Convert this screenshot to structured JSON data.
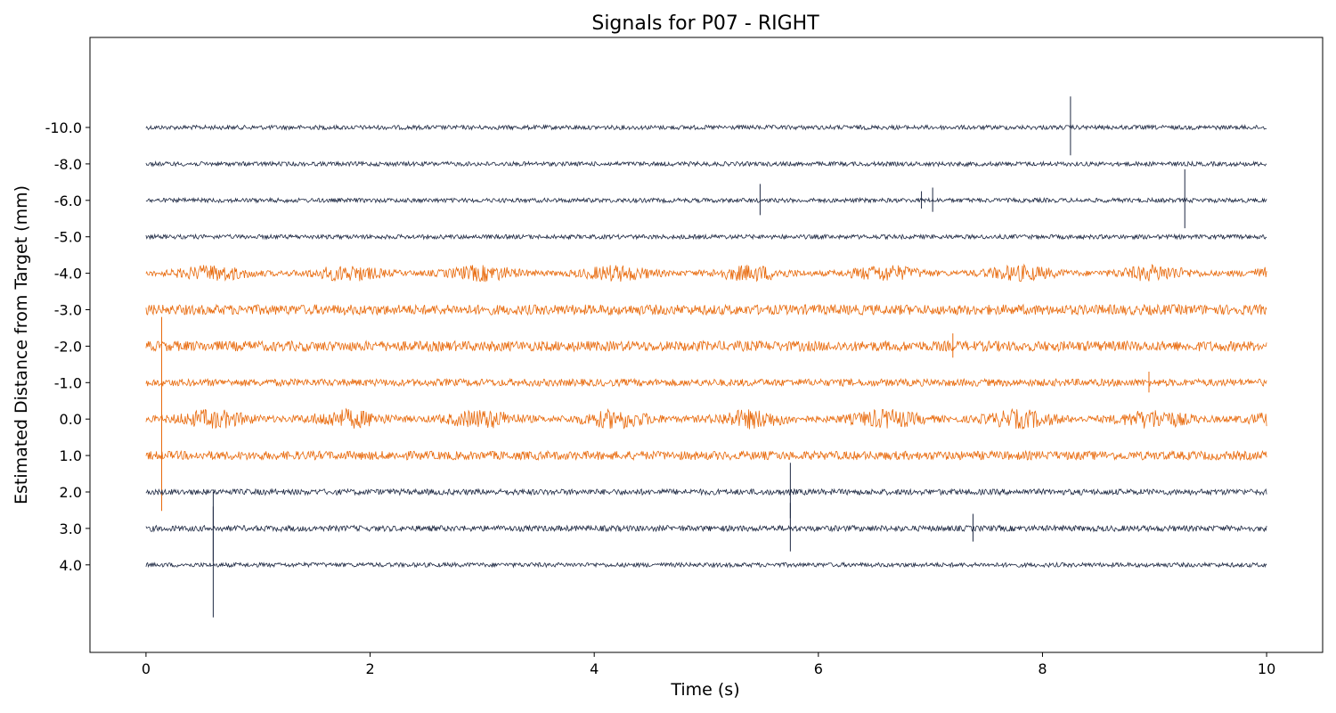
{
  "chart_data": {
    "type": "line",
    "title": "Signals for P07 - RIGHT",
    "xlabel": "Time (s)",
    "ylabel": "Estimated Distance from Target (mm)",
    "xlim": [
      -0.5,
      10.5
    ],
    "xticks": [
      "0",
      "2",
      "4",
      "6",
      "8",
      "10"
    ],
    "x_range": [
      0,
      10
    ],
    "grid": false,
    "colors": {
      "normal": "#1f2a44",
      "highlight": "#e8690b"
    },
    "series": [
      {
        "name": "-10.0",
        "depth": -10.0,
        "highlighted": false,
        "amplitude": 0.06,
        "spikes": [
          {
            "t": 8.25,
            "amp": 0.85
          }
        ]
      },
      {
        "name": "-8.0",
        "depth": -8.0,
        "highlighted": false,
        "amplitude": 0.06,
        "spikes": []
      },
      {
        "name": "-6.0",
        "depth": -6.0,
        "highlighted": false,
        "amplitude": 0.06,
        "spikes": [
          {
            "t": 5.48,
            "amp": 0.45
          },
          {
            "t": 6.92,
            "amp": 0.25
          },
          {
            "t": 7.02,
            "amp": 0.35
          },
          {
            "t": 9.27,
            "amp": 0.85
          }
        ]
      },
      {
        "name": "-5.0",
        "depth": -5.0,
        "highlighted": false,
        "amplitude": 0.06,
        "spikes": []
      },
      {
        "name": "-4.0",
        "depth": -4.0,
        "highlighted": true,
        "amplitude": 0.12,
        "bursts": true,
        "spikes": []
      },
      {
        "name": "-3.0",
        "depth": -3.0,
        "highlighted": true,
        "amplitude": 0.14,
        "spikes": []
      },
      {
        "name": "-2.0",
        "depth": -2.0,
        "highlighted": true,
        "amplitude": 0.14,
        "spikes": [
          {
            "t": 7.2,
            "amp": 0.35
          }
        ]
      },
      {
        "name": "-1.0",
        "depth": -1.0,
        "highlighted": true,
        "amplitude": 0.1,
        "spikes": [
          {
            "t": 8.95,
            "amp": 0.3
          }
        ]
      },
      {
        "name": "0.0",
        "depth": 0.0,
        "highlighted": true,
        "amplitude": 0.14,
        "bursts": true,
        "spikes": [
          {
            "t": 0.14,
            "amp": 2.8
          }
        ]
      },
      {
        "name": "1.0",
        "depth": 1.0,
        "highlighted": true,
        "amplitude": 0.12,
        "spikes": []
      },
      {
        "name": "2.0",
        "depth": 2.0,
        "highlighted": false,
        "amplitude": 0.08,
        "spikes": [
          {
            "t": 5.75,
            "amp": 0.8
          }
        ]
      },
      {
        "name": "3.0",
        "depth": 3.0,
        "highlighted": false,
        "amplitude": 0.08,
        "spikes": [
          {
            "t": 5.75,
            "amp": 0.7
          },
          {
            "t": 7.38,
            "amp": 0.4
          },
          {
            "t": 0.6,
            "amp": 1.0
          }
        ]
      },
      {
        "name": "4.0",
        "depth": 4.0,
        "highlighted": false,
        "amplitude": 0.06,
        "spikes": [
          {
            "t": 0.6,
            "amp": 1.6
          }
        ]
      }
    ]
  }
}
